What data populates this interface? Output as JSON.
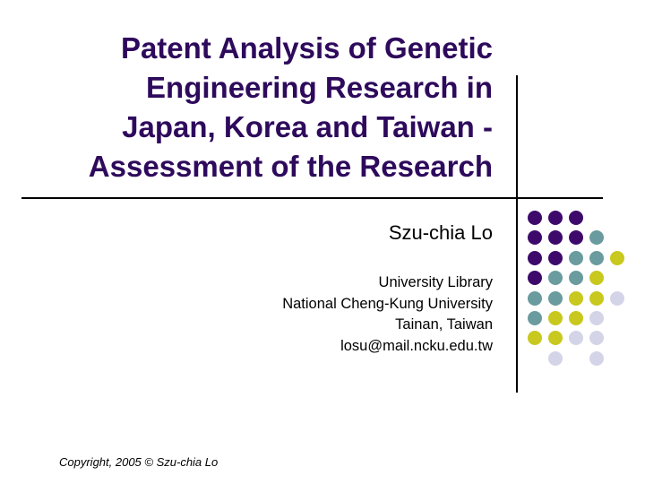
{
  "slide": {
    "title_lines": [
      "Patent Analysis of Genetic",
      "Engineering Research in",
      "Japan, Korea and Taiwan -",
      "Assessment of the Research"
    ],
    "author": "Szu-chia Lo",
    "affiliation_lines": [
      "University Library",
      "National Cheng-Kung University",
      "Tainan, Taiwan",
      "losu@mail.ncku.edu.tw"
    ],
    "copyright": "Copyright, 2005 © Szu-chia Lo"
  },
  "colors": {
    "title": "#2e0a5c",
    "purple": "#3d0a6b",
    "teal": "#6a9b9e",
    "yellow": "#c8c81e",
    "lavender": "#d4d4e8"
  },
  "dot_grid": [
    "PPP__",
    "PPPT_",
    "PPTTY",
    "PTTY_",
    "TTYYL",
    "TYYL_",
    "YYLL_",
    "_L_L_"
  ]
}
